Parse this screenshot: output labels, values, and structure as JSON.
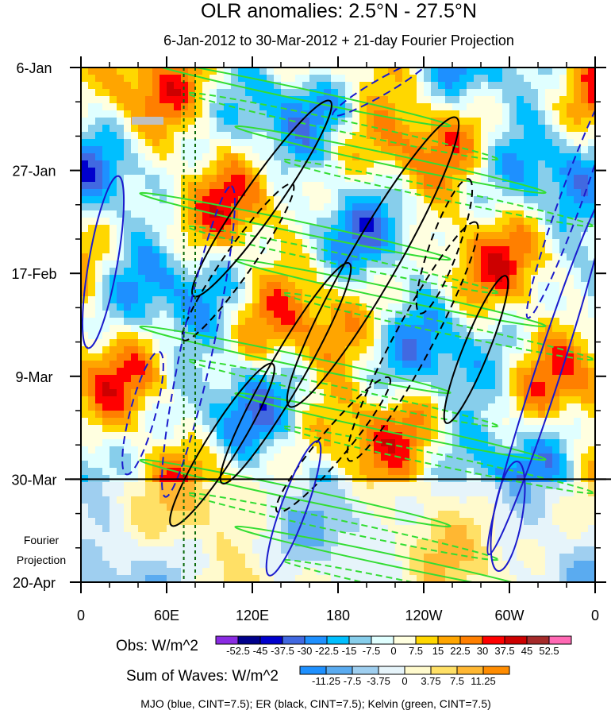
{
  "chart_data": {
    "type": "heatmap",
    "title": "OLR anomalies: 2.5°N - 27.5°N",
    "subtitle": "6-Jan-2012 to 30-Mar-2012 + 21-day Fourier Projection",
    "x_ticks": [
      "0",
      "60E",
      "120E",
      "180",
      "120W",
      "60W",
      "0"
    ],
    "x_tick_lon": [
      0,
      60,
      120,
      180,
      240,
      300,
      360
    ],
    "y_ticks": [
      "6-Jan",
      "27-Jan",
      "17-Feb",
      "9-Mar",
      "30-Mar",
      "20-Apr"
    ],
    "y_tick_day": [
      0,
      21,
      42,
      63,
      84,
      105
    ],
    "projection_start_day": 84,
    "projection_label": [
      "Fourier",
      "Projection"
    ],
    "reference_longitudes": [
      72,
      80
    ],
    "obs_colorbar": {
      "label": "Obs: W/m^2",
      "levels": [
        "-52.5",
        "-45",
        "-37.5",
        "-30",
        "-22.5",
        "-15",
        "-7.5",
        "0",
        "7.5",
        "15",
        "22.5",
        "30",
        "37.5",
        "45",
        "52.5"
      ],
      "colors": [
        "#8a2be2",
        "#00008b",
        "#0000cd",
        "#4169e1",
        "#1e90ff",
        "#00bfff",
        "#87ceeb",
        "#e0ffff",
        "#ffffe0",
        "#ffd700",
        "#ffa500",
        "#ff7f00",
        "#ff0000",
        "#cd0000",
        "#a52a2a",
        "#ff69b4"
      ]
    },
    "waves_colorbar": {
      "label": "Sum of Waves: W/m^2",
      "levels": [
        "-11.25",
        "-7.5",
        "-3.75",
        "0",
        "3.75",
        "7.5",
        "11.25"
      ],
      "colors": [
        "#1e90ff",
        "#5aabf0",
        "#9fcff0",
        "#e6f4fa",
        "#fffacd",
        "#ffe066",
        "#ffb732",
        "#ff8c00"
      ]
    },
    "contour_legend": "MJO (blue, CINT=7.5); ER (black, CINT=7.5); Kelvin (green, CINT=7.5)",
    "contour_colors": {
      "mjo": "#1a1acc",
      "er": "#000000",
      "kelvin": "#33dd33"
    },
    "xlim": [
      0,
      360
    ],
    "ylim_days": [
      0,
      105
    ]
  }
}
